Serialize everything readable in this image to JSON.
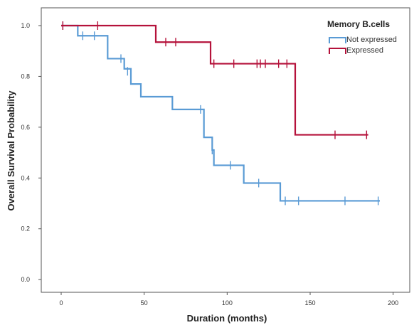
{
  "chart_data": {
    "type": "line",
    "subtype": "kaplan-meier",
    "xlabel": "Duration (months)",
    "ylabel": "Overall Survival Probability",
    "xlim": [
      -12,
      210
    ],
    "ylim": [
      -0.05,
      1.07
    ],
    "xticks": [
      0,
      50,
      100,
      150,
      200
    ],
    "yticks": [
      0.0,
      0.2,
      0.4,
      0.6,
      0.8,
      1.0
    ],
    "ytick_labels": [
      "0.0",
      "0.2",
      "0.4",
      "0.6",
      "0.8",
      "1.0"
    ],
    "grid": false,
    "legend": {
      "title": "Memory B.cells",
      "position": "top-right"
    },
    "series": [
      {
        "name": "Not expressed",
        "color": "#5a9bd5",
        "steps": [
          [
            0,
            1.0
          ],
          [
            10,
            0.96
          ],
          [
            28,
            0.87
          ],
          [
            38,
            0.83
          ],
          [
            42,
            0.77
          ],
          [
            48,
            0.72
          ],
          [
            67,
            0.67
          ],
          [
            86,
            0.56
          ],
          [
            91,
            0.51
          ],
          [
            92,
            0.45
          ],
          [
            110,
            0.38
          ],
          [
            132,
            0.31
          ],
          [
            192,
            0.31
          ]
        ],
        "censored": [
          [
            1,
            1.0
          ],
          [
            13,
            0.96
          ],
          [
            20,
            0.96
          ],
          [
            36,
            0.87
          ],
          [
            40,
            0.82
          ],
          [
            84,
            0.67
          ],
          [
            91,
            0.51
          ],
          [
            102,
            0.45
          ],
          [
            119,
            0.38
          ],
          [
            135,
            0.31
          ],
          [
            143,
            0.31
          ],
          [
            171,
            0.31
          ],
          [
            191,
            0.31
          ]
        ]
      },
      {
        "name": "Expressed",
        "color": "#b5123b",
        "steps": [
          [
            0,
            1.0
          ],
          [
            57,
            0.935
          ],
          [
            90,
            0.85
          ],
          [
            141,
            0.57
          ],
          [
            185,
            0.57
          ]
        ],
        "censored": [
          [
            1,
            1.0
          ],
          [
            22,
            1.0
          ],
          [
            63,
            0.935
          ],
          [
            69,
            0.935
          ],
          [
            92,
            0.85
          ],
          [
            104,
            0.85
          ],
          [
            118,
            0.85
          ],
          [
            120,
            0.85
          ],
          [
            123,
            0.85
          ],
          [
            131,
            0.85
          ],
          [
            136,
            0.85
          ],
          [
            165,
            0.57
          ],
          [
            184,
            0.57
          ]
        ]
      }
    ]
  }
}
